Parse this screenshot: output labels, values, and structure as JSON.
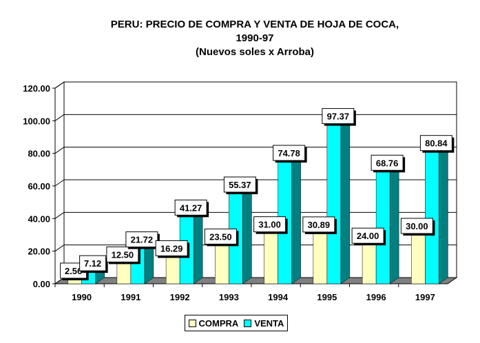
{
  "chart_data": {
    "type": "bar",
    "title": [
      "PERU: PRECIO DE COMPRA Y VENTA DE HOJA DE COCA,",
      "1990-97",
      "(Nuevos soles x Arroba)"
    ],
    "categories": [
      "1990",
      "1991",
      "1992",
      "1993",
      "1994",
      "1995",
      "1996",
      "1997"
    ],
    "series": [
      {
        "name": "COMPRA",
        "color": "#FFFFC0",
        "values": [
          2.56,
          12.5,
          16.29,
          23.5,
          31.0,
          30.89,
          24.0,
          30.0
        ],
        "labels": [
          "2.56",
          "12.50",
          "16.29",
          "23.50",
          "31.00",
          "30.89",
          "24.00",
          "30.00"
        ]
      },
      {
        "name": "VENTA",
        "color": "#00FFFF",
        "side_color": "#008080",
        "values": [
          7.12,
          21.72,
          41.27,
          55.37,
          74.78,
          97.37,
          68.76,
          80.84
        ],
        "labels": [
          "7.12",
          "21.72",
          "41.27",
          "55.37",
          "74.78",
          "97.37",
          "68.76",
          "80.84"
        ]
      }
    ],
    "yticks": [
      "0.00",
      "20.00",
      "40.00",
      "60.00",
      "80.00",
      "100.00",
      "120.00"
    ],
    "ylim": [
      0,
      120
    ],
    "grid": true,
    "legend": "bottom",
    "xlabel": "",
    "ylabel": ""
  }
}
